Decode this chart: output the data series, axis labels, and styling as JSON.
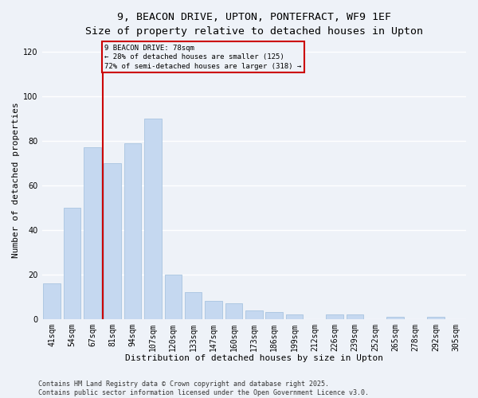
{
  "title_line1": "9, BEACON DRIVE, UPTON, PONTEFRACT, WF9 1EF",
  "title_line2": "Size of property relative to detached houses in Upton",
  "xlabel": "Distribution of detached houses by size in Upton",
  "ylabel": "Number of detached properties",
  "categories": [
    "41sqm",
    "54sqm",
    "67sqm",
    "81sqm",
    "94sqm",
    "107sqm",
    "120sqm",
    "133sqm",
    "147sqm",
    "160sqm",
    "173sqm",
    "186sqm",
    "199sqm",
    "212sqm",
    "226sqm",
    "239sqm",
    "252sqm",
    "265sqm",
    "278sqm",
    "292sqm",
    "305sqm"
  ],
  "values": [
    16,
    50,
    77,
    70,
    79,
    90,
    20,
    12,
    8,
    7,
    4,
    3,
    2,
    0,
    2,
    2,
    0,
    1,
    0,
    1,
    0
  ],
  "bar_color": "#c5d8f0",
  "bar_edge_color": "#a8c4e0",
  "vline_x": 2.5,
  "vline_color": "#cc0000",
  "annotation_box_text": "9 BEACON DRIVE: 78sqm\n← 28% of detached houses are smaller (125)\n72% of semi-detached houses are larger (318) →",
  "ylim": [
    0,
    125
  ],
  "yticks": [
    0,
    20,
    40,
    60,
    80,
    100,
    120
  ],
  "background_color": "#eef2f8",
  "footer_text": "Contains HM Land Registry data © Crown copyright and database right 2025.\nContains public sector information licensed under the Open Government Licence v3.0.",
  "grid_color": "#ffffff",
  "title_fontsize": 9.5,
  "subtitle_fontsize": 8.5,
  "xlabel_fontsize": 8,
  "ylabel_fontsize": 8,
  "tick_fontsize": 7,
  "annot_fontsize": 6.5,
  "footer_fontsize": 6
}
